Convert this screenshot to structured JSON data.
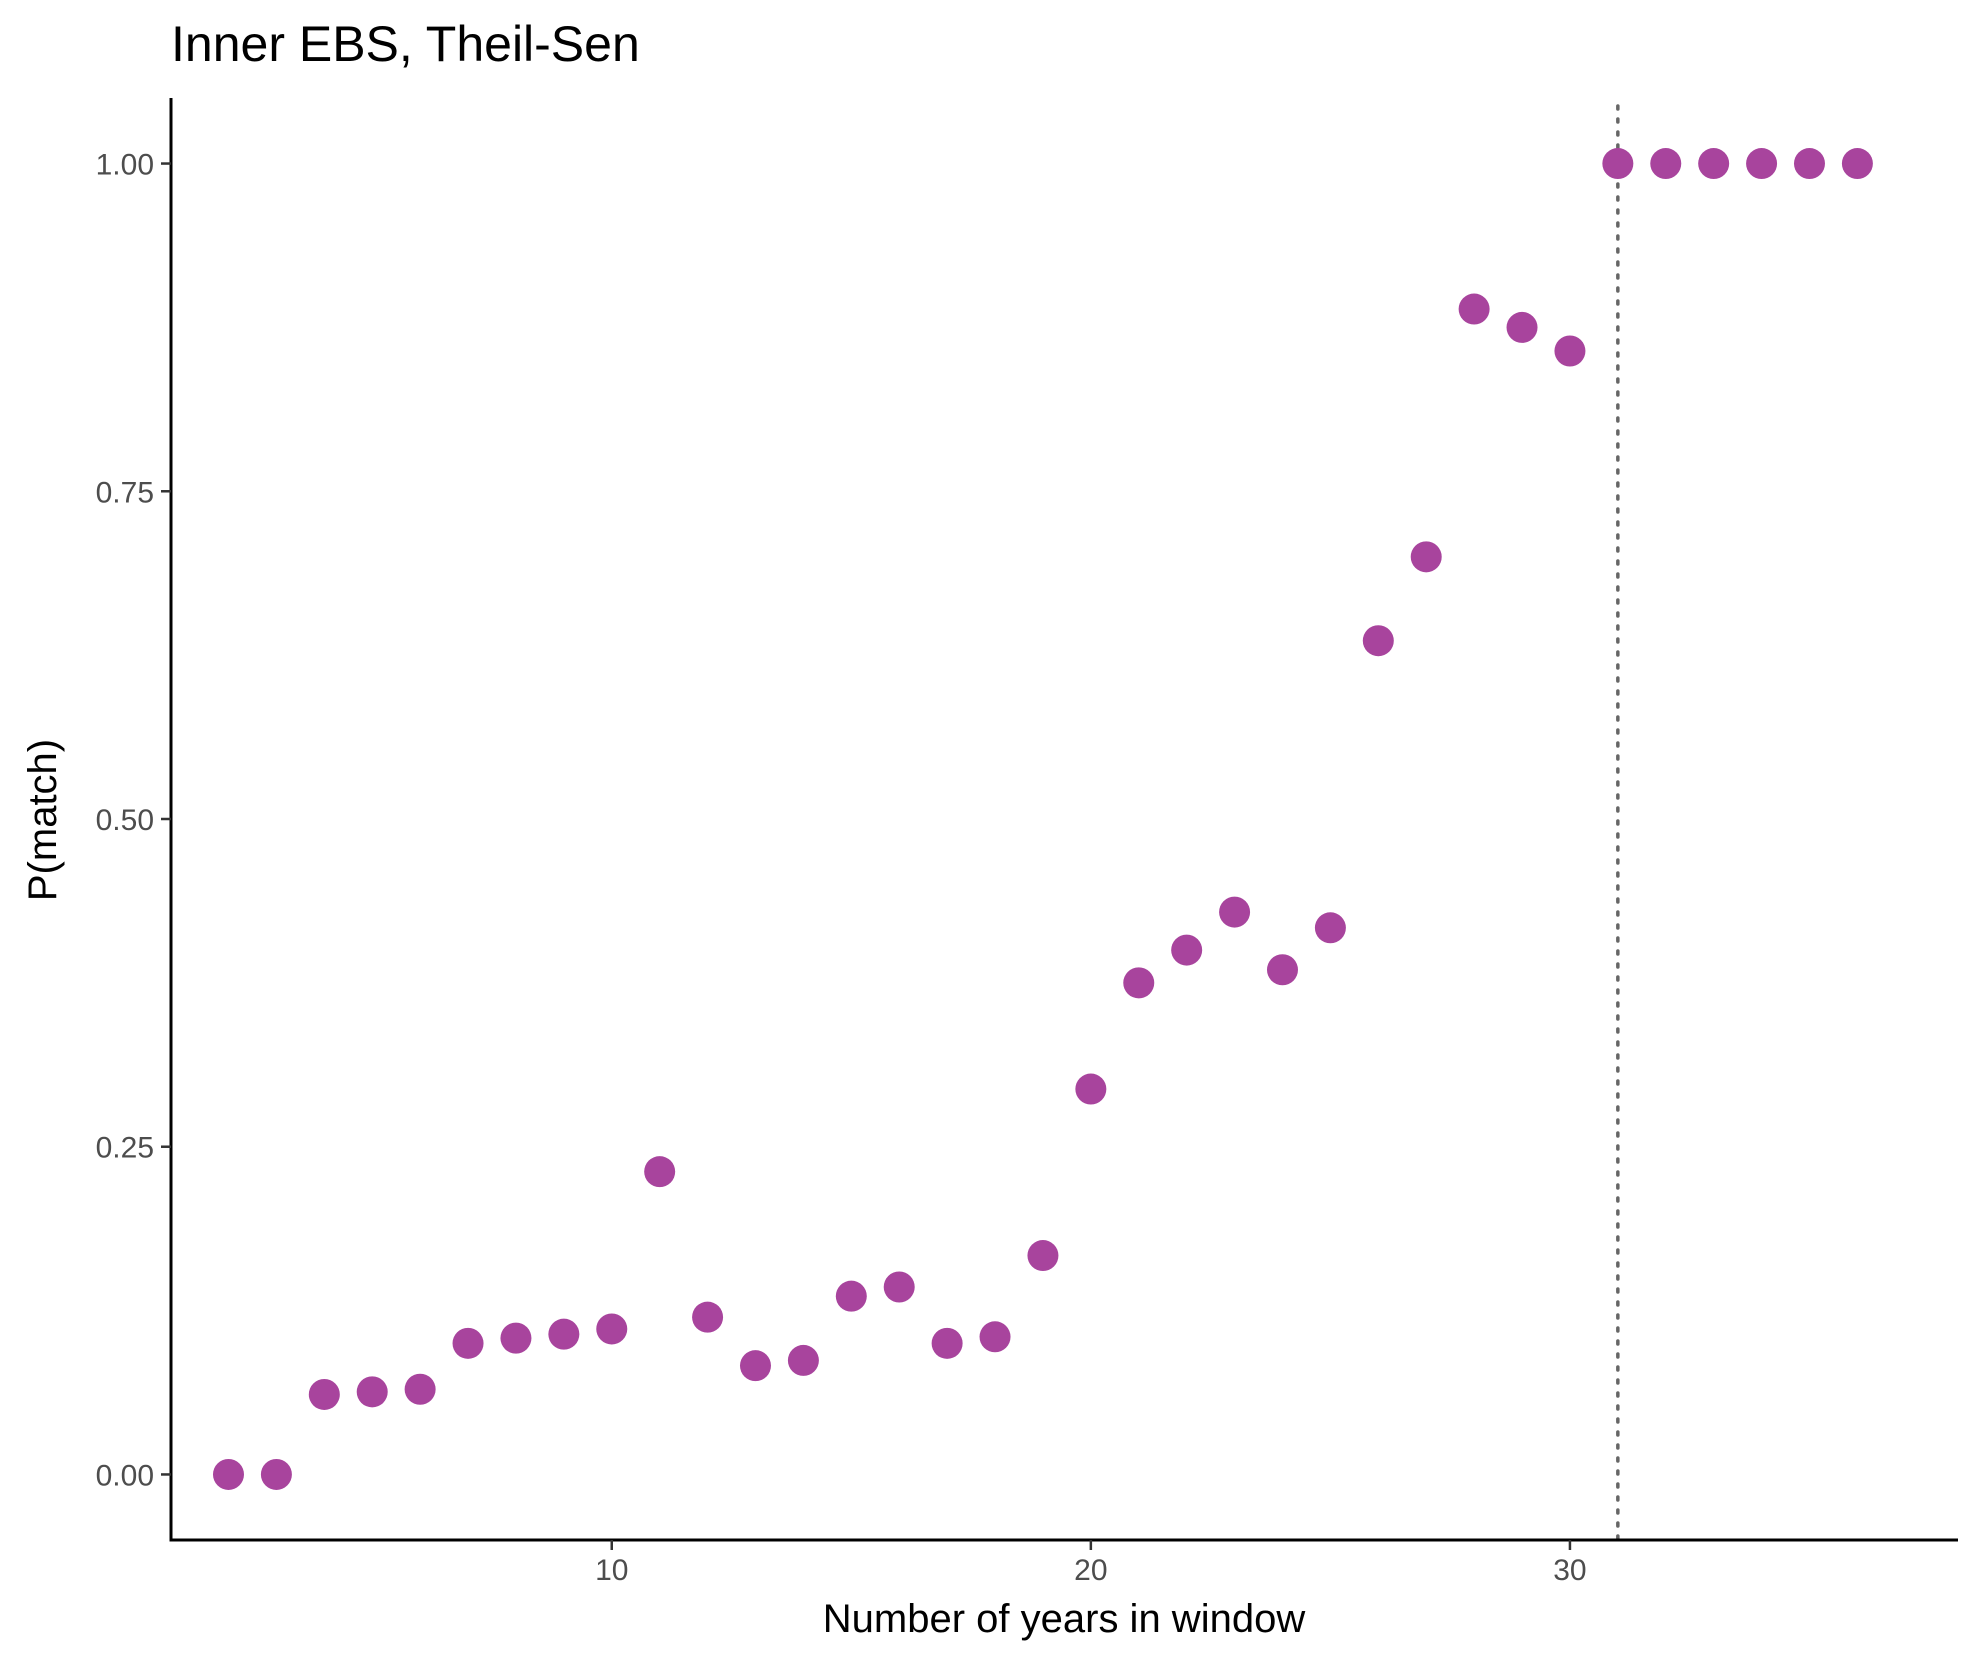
{
  "chart_data": {
    "type": "scatter",
    "title": "Inner EBS, Theil-Sen",
    "xlabel": "Number of years in window",
    "ylabel": "P(match)",
    "xlim": [
      0.8,
      38.1
    ],
    "ylim": [
      -0.05,
      1.05
    ],
    "x_ticks": [
      10,
      20,
      30
    ],
    "x_tick_labels": [
      "10",
      "20",
      "30"
    ],
    "y_ticks": [
      0,
      0.25,
      0.5,
      0.75,
      1
    ],
    "y_tick_labels": [
      "0.00",
      "0.25",
      "0.50",
      "0.75",
      "1.00"
    ],
    "grid": false,
    "legend": "none",
    "point_color": "#A8449D",
    "reference_line": {
      "x": 31,
      "style": "dotted",
      "color": "#666666"
    },
    "x": [
      2,
      3,
      4,
      5,
      6,
      7,
      8,
      9,
      10,
      11,
      12,
      13,
      14,
      15,
      16,
      17,
      18,
      19,
      20,
      21,
      22,
      23,
      24,
      25,
      26,
      27,
      28,
      29,
      30,
      31,
      32,
      33,
      34,
      35,
      36
    ],
    "y": [
      0.0,
      0.0,
      0.061,
      0.063,
      0.065,
      0.1,
      0.104,
      0.107,
      0.111,
      0.231,
      0.12,
      0.083,
      0.087,
      0.136,
      0.143,
      0.1,
      0.105,
      0.167,
      0.294,
      0.375,
      0.4,
      0.429,
      0.385,
      0.417,
      0.636,
      0.7,
      0.889,
      0.875,
      0.857,
      1.0,
      1.0,
      1.0,
      1.0,
      1.0,
      1.0
    ]
  }
}
